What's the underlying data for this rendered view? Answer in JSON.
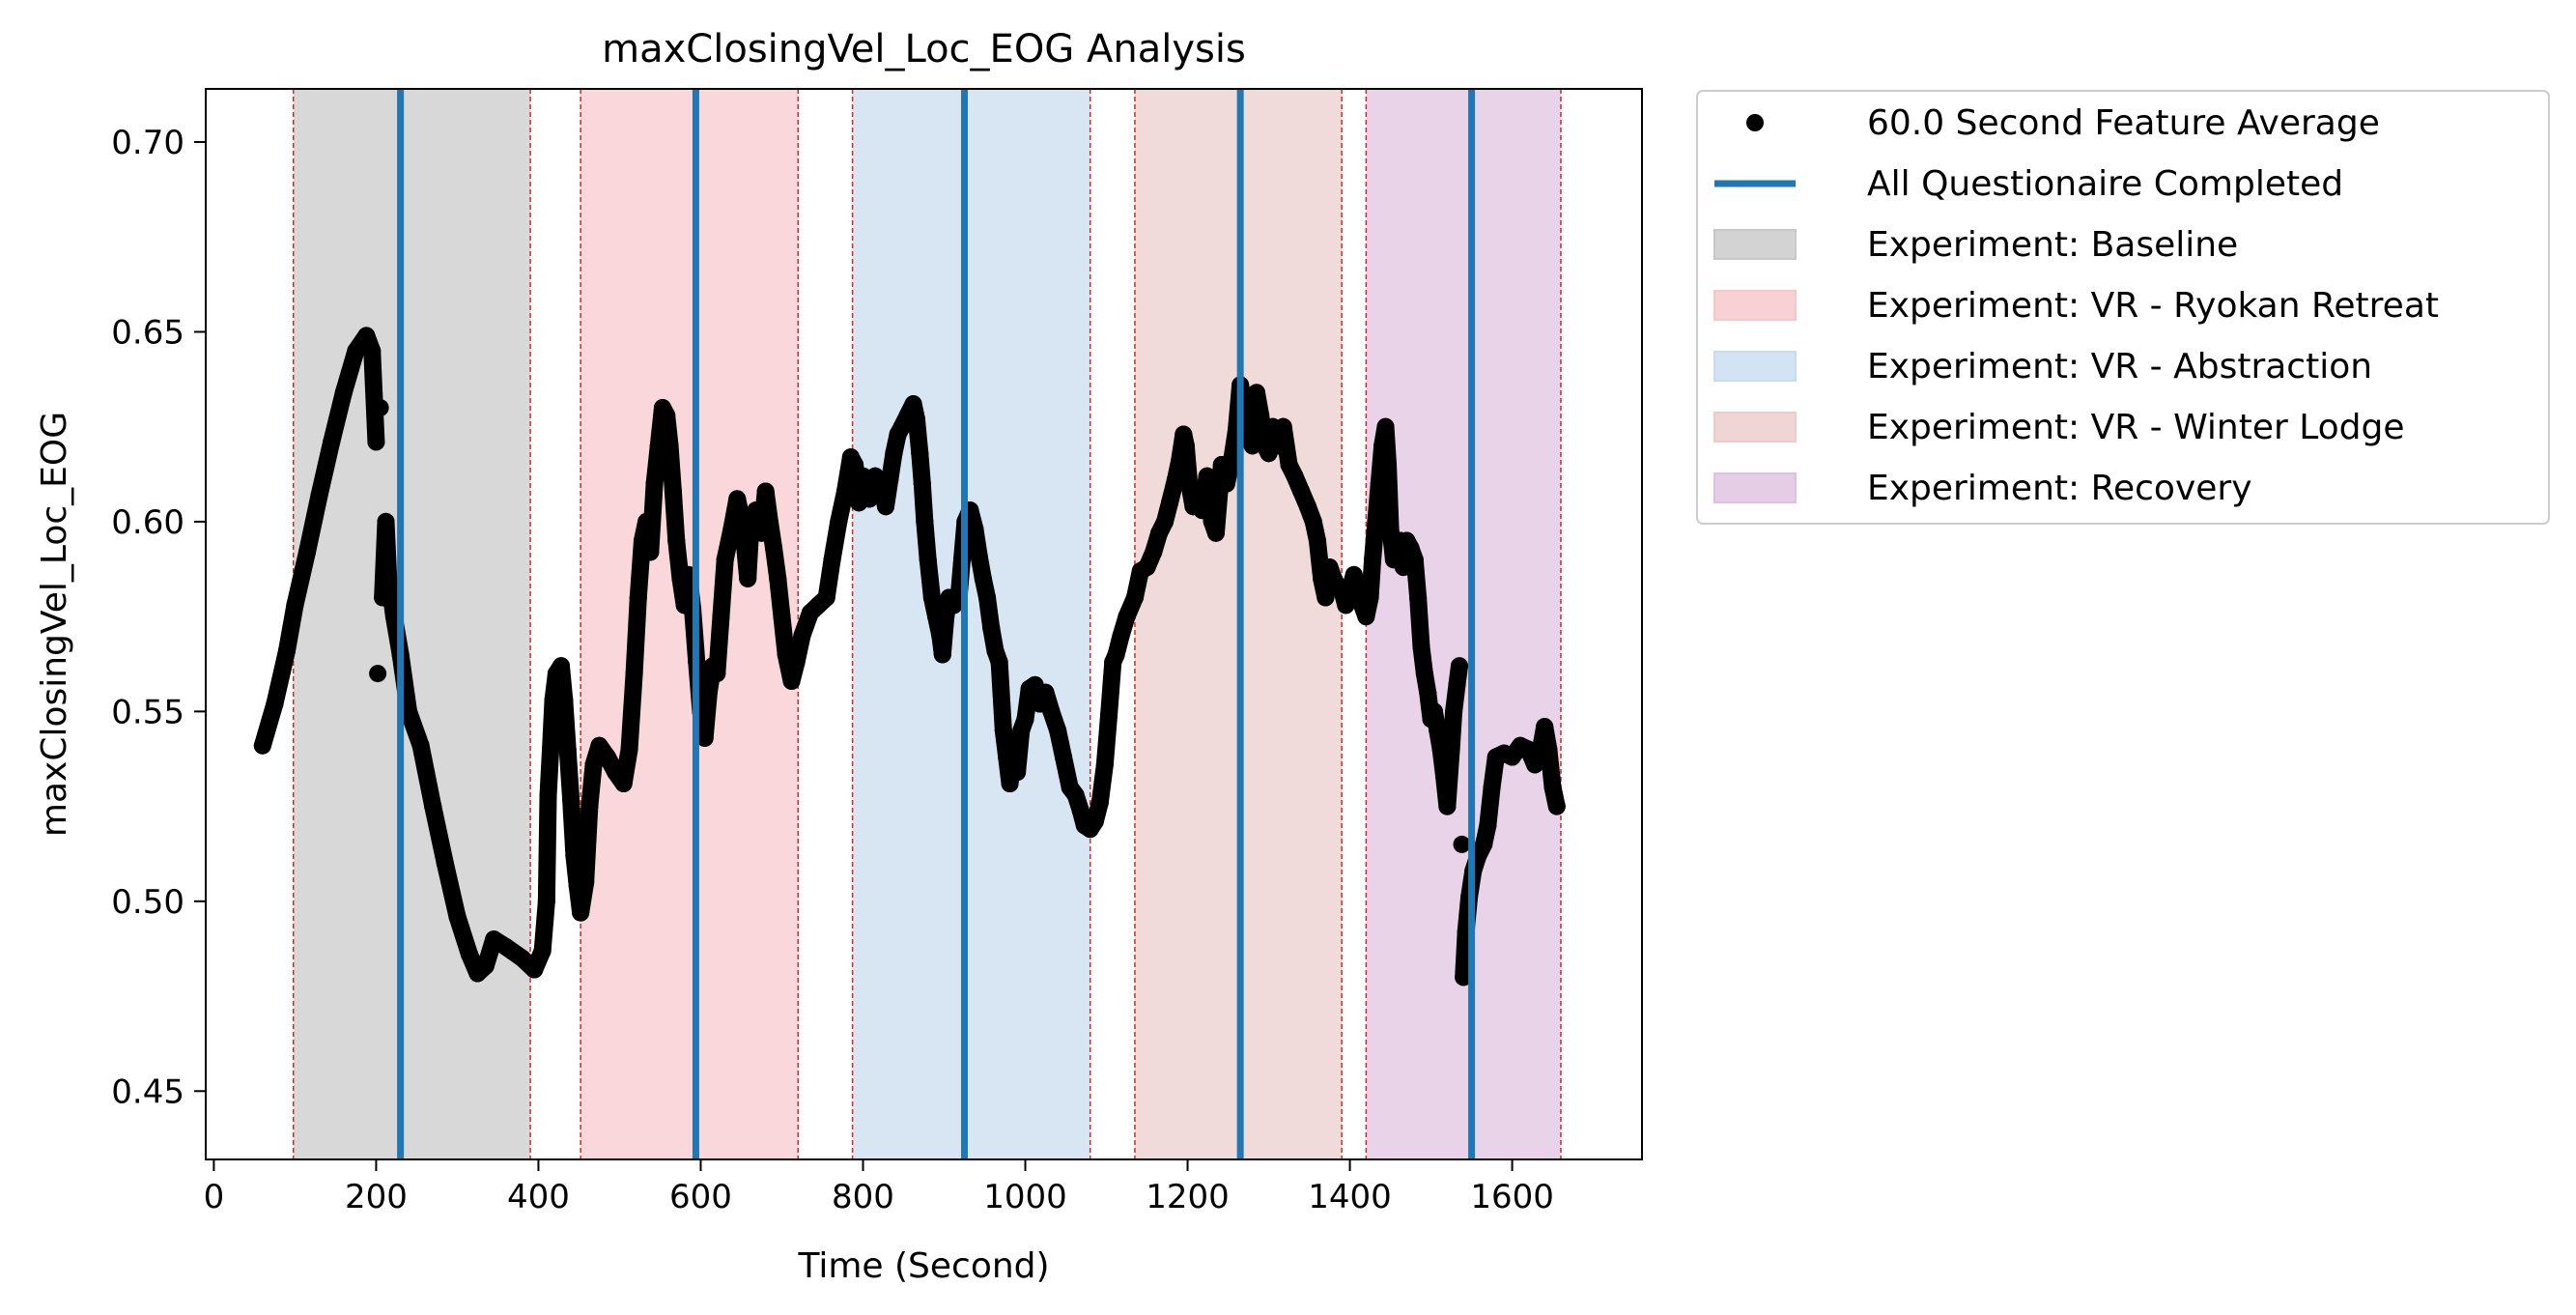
{
  "chart_data": {
    "type": "scatter",
    "title": "maxClosingVel_Loc_EOG Analysis",
    "xlabel": "Time (Second)",
    "ylabel": "maxClosingVel_Loc_EOG",
    "xlim": [
      -10,
      1760
    ],
    "ylim": [
      0.432,
      0.714
    ],
    "xticks": [
      0,
      200,
      400,
      600,
      800,
      1000,
      1200,
      1400,
      1600
    ],
    "yticks": [
      0.45,
      0.5,
      0.55,
      0.6,
      0.65,
      0.7
    ],
    "xtick_labels": [
      "0",
      "200",
      "400",
      "600",
      "800",
      "1000",
      "1200",
      "1400",
      "1600"
    ],
    "ytick_labels": [
      "0.45",
      "0.50",
      "0.55",
      "0.60",
      "0.65",
      "0.70"
    ],
    "grid": false,
    "legend_position": "outside-top-right",
    "colors": {
      "points": "#000000",
      "questionnaire_line": "#1f77b4",
      "boundary_line": "#d62728"
    },
    "series": [
      {
        "name": "60.0 Second Feature Average",
        "points": [
          [
            60,
            0.541
          ],
          [
            75,
            0.552
          ],
          [
            90,
            0.566
          ],
          [
            100,
            0.578
          ],
          [
            115,
            0.592
          ],
          [
            130,
            0.607
          ],
          [
            145,
            0.621
          ],
          [
            160,
            0.634
          ],
          [
            175,
            0.645
          ],
          [
            188,
            0.649
          ],
          [
            195,
            0.645
          ],
          [
            200,
            0.621
          ],
          [
            202,
            0.56
          ],
          [
            205,
            0.63
          ],
          [
            208,
            0.58
          ],
          [
            212,
            0.6
          ],
          [
            215,
            0.586
          ],
          [
            222,
            0.575
          ],
          [
            230,
            0.565
          ],
          [
            240,
            0.55
          ],
          [
            255,
            0.541
          ],
          [
            270,
            0.525
          ],
          [
            285,
            0.51
          ],
          [
            300,
            0.496
          ],
          [
            315,
            0.486
          ],
          [
            325,
            0.481
          ],
          [
            335,
            0.483
          ],
          [
            345,
            0.49
          ],
          [
            360,
            0.488
          ],
          [
            380,
            0.485
          ],
          [
            395,
            0.482
          ],
          [
            405,
            0.487
          ],
          [
            410,
            0.5
          ],
          [
            412,
            0.528
          ],
          [
            415,
            0.54
          ],
          [
            418,
            0.553
          ],
          [
            422,
            0.56
          ],
          [
            428,
            0.562
          ],
          [
            432,
            0.553
          ],
          [
            436,
            0.54
          ],
          [
            440,
            0.527
          ],
          [
            444,
            0.512
          ],
          [
            448,
            0.504
          ],
          [
            452,
            0.497
          ],
          [
            458,
            0.505
          ],
          [
            463,
            0.525
          ],
          [
            468,
            0.536
          ],
          [
            475,
            0.541
          ],
          [
            485,
            0.538
          ],
          [
            495,
            0.534
          ],
          [
            505,
            0.531
          ],
          [
            512,
            0.54
          ],
          [
            518,
            0.56
          ],
          [
            523,
            0.58
          ],
          [
            528,
            0.595
          ],
          [
            533,
            0.6
          ],
          [
            538,
            0.592
          ],
          [
            543,
            0.61
          ],
          [
            548,
            0.62
          ],
          [
            553,
            0.63
          ],
          [
            558,
            0.628
          ],
          [
            562,
            0.62
          ],
          [
            566,
            0.608
          ],
          [
            570,
            0.595
          ],
          [
            575,
            0.585
          ],
          [
            580,
            0.578
          ],
          [
            585,
            0.586
          ],
          [
            590,
            0.577
          ],
          [
            595,
            0.563
          ],
          [
            600,
            0.55
          ],
          [
            605,
            0.543
          ],
          [
            610,
            0.555
          ],
          [
            615,
            0.562
          ],
          [
            620,
            0.56
          ],
          [
            625,
            0.575
          ],
          [
            630,
            0.59
          ],
          [
            638,
            0.598
          ],
          [
            645,
            0.606
          ],
          [
            652,
            0.599
          ],
          [
            658,
            0.585
          ],
          [
            662,
            0.6
          ],
          [
            668,
            0.603
          ],
          [
            675,
            0.597
          ],
          [
            680,
            0.608
          ],
          [
            685,
            0.6
          ],
          [
            690,
            0.593
          ],
          [
            695,
            0.585
          ],
          [
            700,
            0.575
          ],
          [
            705,
            0.565
          ],
          [
            712,
            0.558
          ],
          [
            718,
            0.563
          ],
          [
            725,
            0.57
          ],
          [
            735,
            0.576
          ],
          [
            745,
            0.578
          ],
          [
            755,
            0.58
          ],
          [
            762,
            0.59
          ],
          [
            770,
            0.6
          ],
          [
            778,
            0.608
          ],
          [
            785,
            0.617
          ],
          [
            790,
            0.615
          ],
          [
            795,
            0.605
          ],
          [
            800,
            0.612
          ],
          [
            808,
            0.606
          ],
          [
            815,
            0.612
          ],
          [
            822,
            0.61
          ],
          [
            828,
            0.604
          ],
          [
            833,
            0.611
          ],
          [
            838,
            0.618
          ],
          [
            843,
            0.623
          ],
          [
            848,
            0.625
          ],
          [
            855,
            0.628
          ],
          [
            862,
            0.631
          ],
          [
            866,
            0.627
          ],
          [
            870,
            0.618
          ],
          [
            873,
            0.61
          ],
          [
            876,
            0.6
          ],
          [
            880,
            0.59
          ],
          [
            885,
            0.58
          ],
          [
            890,
            0.575
          ],
          [
            895,
            0.57
          ],
          [
            898,
            0.565
          ],
          [
            902,
            0.575
          ],
          [
            906,
            0.58
          ],
          [
            912,
            0.578
          ],
          [
            918,
            0.58
          ],
          [
            922,
            0.59
          ],
          [
            926,
            0.6
          ],
          [
            932,
            0.603
          ],
          [
            938,
            0.598
          ],
          [
            943,
            0.591
          ],
          [
            948,
            0.585
          ],
          [
            953,
            0.58
          ],
          [
            958,
            0.572
          ],
          [
            963,
            0.566
          ],
          [
            968,
            0.563
          ],
          [
            973,
            0.545
          ],
          [
            977,
            0.538
          ],
          [
            981,
            0.531
          ],
          [
            985,
            0.538
          ],
          [
            990,
            0.534
          ],
          [
            995,
            0.545
          ],
          [
            1000,
            0.548
          ],
          [
            1005,
            0.556
          ],
          [
            1012,
            0.557
          ],
          [
            1018,
            0.552
          ],
          [
            1025,
            0.555
          ],
          [
            1032,
            0.55
          ],
          [
            1040,
            0.545
          ],
          [
            1047,
            0.538
          ],
          [
            1055,
            0.53
          ],
          [
            1062,
            0.528
          ],
          [
            1068,
            0.524
          ],
          [
            1073,
            0.52
          ],
          [
            1080,
            0.519
          ],
          [
            1086,
            0.521
          ],
          [
            1092,
            0.526
          ],
          [
            1098,
            0.536
          ],
          [
            1103,
            0.549
          ],
          [
            1108,
            0.563
          ],
          [
            1112,
            0.565
          ],
          [
            1118,
            0.57
          ],
          [
            1125,
            0.575
          ],
          [
            1135,
            0.58
          ],
          [
            1142,
            0.587
          ],
          [
            1150,
            0.588
          ],
          [
            1158,
            0.592
          ],
          [
            1165,
            0.597
          ],
          [
            1172,
            0.6
          ],
          [
            1178,
            0.605
          ],
          [
            1185,
            0.611
          ],
          [
            1190,
            0.616
          ],
          [
            1195,
            0.623
          ],
          [
            1198,
            0.62
          ],
          [
            1202,
            0.61
          ],
          [
            1207,
            0.604
          ],
          [
            1212,
            0.605
          ],
          [
            1218,
            0.603
          ],
          [
            1224,
            0.612
          ],
          [
            1230,
            0.6
          ],
          [
            1235,
            0.597
          ],
          [
            1242,
            0.615
          ],
          [
            1248,
            0.61
          ],
          [
            1255,
            0.617
          ],
          [
            1260,
            0.624
          ],
          [
            1265,
            0.636
          ],
          [
            1270,
            0.63
          ],
          [
            1275,
            0.622
          ],
          [
            1280,
            0.62
          ],
          [
            1285,
            0.634
          ],
          [
            1290,
            0.628
          ],
          [
            1295,
            0.62
          ],
          [
            1300,
            0.618
          ],
          [
            1305,
            0.625
          ],
          [
            1312,
            0.62
          ],
          [
            1318,
            0.625
          ],
          [
            1325,
            0.615
          ],
          [
            1332,
            0.612
          ],
          [
            1340,
            0.608
          ],
          [
            1348,
            0.604
          ],
          [
            1355,
            0.6
          ],
          [
            1360,
            0.595
          ],
          [
            1365,
            0.585
          ],
          [
            1370,
            0.58
          ],
          [
            1375,
            0.588
          ],
          [
            1380,
            0.585
          ],
          [
            1385,
            0.583
          ],
          [
            1390,
            0.582
          ],
          [
            1395,
            0.578
          ],
          [
            1400,
            0.582
          ],
          [
            1405,
            0.586
          ],
          [
            1410,
            0.582
          ],
          [
            1415,
            0.578
          ],
          [
            1420,
            0.575
          ],
          [
            1425,
            0.58
          ],
          [
            1428,
            0.59
          ],
          [
            1432,
            0.6
          ],
          [
            1436,
            0.61
          ],
          [
            1440,
            0.62
          ],
          [
            1444,
            0.625
          ],
          [
            1447,
            0.615
          ],
          [
            1450,
            0.598
          ],
          [
            1454,
            0.59
          ],
          [
            1458,
            0.592
          ],
          [
            1462,
            0.595
          ],
          [
            1466,
            0.588
          ],
          [
            1470,
            0.595
          ],
          [
            1475,
            0.593
          ],
          [
            1480,
            0.59
          ],
          [
            1484,
            0.58
          ],
          [
            1488,
            0.567
          ],
          [
            1492,
            0.56
          ],
          [
            1496,
            0.555
          ],
          [
            1500,
            0.548
          ],
          [
            1504,
            0.55
          ],
          [
            1508,
            0.545
          ],
          [
            1512,
            0.54
          ],
          [
            1516,
            0.533
          ],
          [
            1520,
            0.525
          ],
          [
            1525,
            0.54
          ],
          [
            1528,
            0.55
          ],
          [
            1532,
            0.557
          ],
          [
            1535,
            0.562
          ],
          [
            1538,
            0.515
          ],
          [
            1540,
            0.48
          ],
          [
            1543,
            0.492
          ],
          [
            1547,
            0.501
          ],
          [
            1552,
            0.508
          ],
          [
            1558,
            0.512
          ],
          [
            1565,
            0.515
          ],
          [
            1570,
            0.52
          ],
          [
            1575,
            0.53
          ],
          [
            1580,
            0.538
          ],
          [
            1590,
            0.539
          ],
          [
            1600,
            0.538
          ],
          [
            1610,
            0.541
          ],
          [
            1620,
            0.54
          ],
          [
            1628,
            0.536
          ],
          [
            1635,
            0.54
          ],
          [
            1640,
            0.546
          ],
          [
            1645,
            0.54
          ],
          [
            1650,
            0.53
          ],
          [
            1655,
            0.525
          ]
        ]
      },
      {
        "name": "All Questionaire Completed",
        "x": [
          230,
          594,
          925,
          1265,
          1550
        ]
      }
    ],
    "phases": [
      {
        "name": "Experiment: Baseline",
        "start": 98,
        "end": 390,
        "color": "#c8c8c8"
      },
      {
        "name": "Experiment: VR - Ryokan Retreat",
        "start": 452,
        "end": 720,
        "color": "#f6c6cb"
      },
      {
        "name": "Experiment: VR - Abstraction",
        "start": 787,
        "end": 1080,
        "color": "#c7dcee"
      },
      {
        "name": "Experiment: VR - Winter Lodge",
        "start": 1135,
        "end": 1390,
        "color": "#ebcbcb"
      },
      {
        "name": "Experiment: Recovery",
        "start": 1420,
        "end": 1660,
        "color": "#dfc0e0"
      }
    ]
  }
}
